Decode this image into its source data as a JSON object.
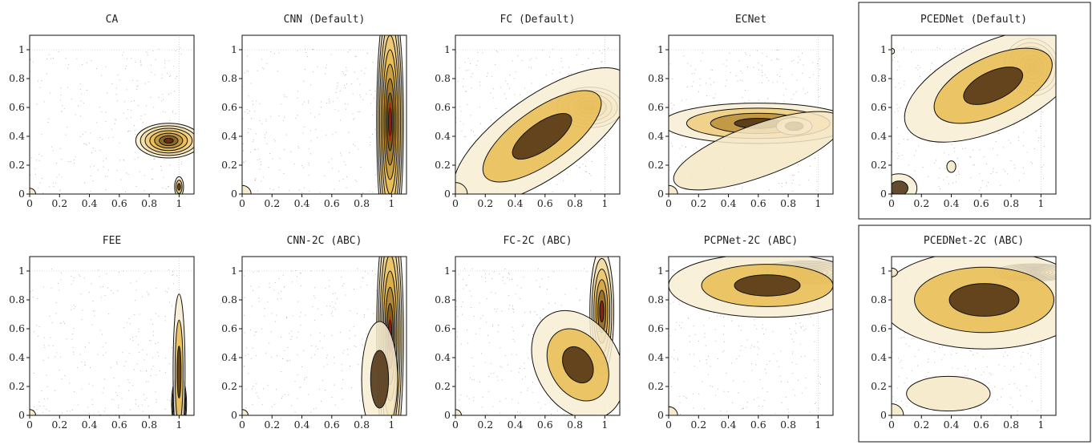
{
  "colors": {
    "frame": "#111111",
    "contour": "#111111",
    "grid": "#bbbbbb",
    "scatter": "#8a5a5a",
    "fill_low": "#f8edd2",
    "fill_mid": "#e8b94a",
    "fill_high": "#3a1e08",
    "peak": "#b01010"
  },
  "chart_data": [
    {
      "type": "contour",
      "title": "CA",
      "xticks": [
        "0",
        "0.2",
        "0.4",
        "0.6",
        "0.8",
        "1"
      ],
      "yticks": [
        "0",
        "0.2",
        "0.4",
        "0.6",
        "0.8",
        "1"
      ],
      "xlim": [
        0,
        1.1
      ],
      "ylim": [
        0,
        1.1
      ],
      "grid": "dotted",
      "highlighted": false,
      "blobs": [
        {
          "cx": 0.93,
          "cy": 0.37,
          "sx": 0.11,
          "sy": 0.06,
          "levels": 7
        },
        {
          "cx": 1.0,
          "cy": 0.05,
          "sx": 0.015,
          "sy": 0.035,
          "levels": 3
        },
        {
          "cx": 0.0,
          "cy": 0.0,
          "sx": 0.02,
          "sy": 0.02,
          "levels": 1
        }
      ]
    },
    {
      "type": "contour",
      "title": "CNN (Default)",
      "xticks": [
        "0",
        "0.2",
        "0.4",
        "0.6",
        "0.8",
        "1"
      ],
      "yticks": [
        "0",
        "0.2",
        "0.4",
        "0.6",
        "0.8",
        "1"
      ],
      "xlim": [
        0,
        1.1
      ],
      "ylim": [
        0,
        1.1
      ],
      "grid": "dotted",
      "highlighted": false,
      "blobs": [
        {
          "cx": 0.99,
          "cy": 0.5,
          "sx": 0.045,
          "sy": 0.45,
          "levels": 9
        },
        {
          "cx": 0.0,
          "cy": 0.0,
          "sx": 0.03,
          "sy": 0.03,
          "levels": 1
        }
      ]
    },
    {
      "type": "contour",
      "title": "FC (Default)",
      "xticks": [
        "0",
        "0.2",
        "0.4",
        "0.6",
        "0.8",
        "1"
      ],
      "yticks": [
        "0",
        "0.2",
        "0.4",
        "0.6",
        "0.8",
        "1"
      ],
      "xlim": [
        0,
        1.1
      ],
      "ylim": [
        0,
        1.1
      ],
      "grid": "dotted",
      "highlighted": false,
      "blobs": [
        {
          "cx": 0.9,
          "cy": 0.6,
          "sx": 0.11,
          "sy": 0.07,
          "levels": 6
        },
        {
          "cx": 0.58,
          "cy": 0.4,
          "sx": 0.35,
          "sy": 0.14,
          "rot": -35,
          "levels": 3
        },
        {
          "cx": 0.0,
          "cy": 0.0,
          "sx": 0.04,
          "sy": 0.04,
          "levels": 1
        }
      ]
    },
    {
      "type": "contour",
      "title": "ECNet",
      "xticks": [
        "0",
        "0.2",
        "0.4",
        "0.6",
        "0.8",
        "1"
      ],
      "yticks": [
        "0",
        "0.2",
        "0.4",
        "0.6",
        "0.8",
        "1"
      ],
      "xlim": [
        0,
        1.1
      ],
      "ylim": [
        0,
        1.1
      ],
      "grid": "dotted",
      "highlighted": false,
      "blobs": [
        {
          "cx": 0.6,
          "cy": 0.49,
          "sx": 0.32,
          "sy": 0.07,
          "levels": 4
        },
        {
          "cx": 0.84,
          "cy": 0.47,
          "sx": 0.06,
          "sy": 0.03,
          "levels": 2
        },
        {
          "cx": 0.6,
          "cy": 0.3,
          "sx": 0.3,
          "sy": 0.09,
          "rot": -20,
          "levels": 1
        },
        {
          "cx": 0.0,
          "cy": 0.0,
          "sx": 0.03,
          "sy": 0.03,
          "levels": 1
        }
      ]
    },
    {
      "type": "contour",
      "title": "PCEDNet (Default)",
      "xticks": [
        "0",
        "0.2",
        "0.4",
        "0.6",
        "0.8",
        "1"
      ],
      "yticks": [
        "0",
        "0.2",
        "0.4",
        "0.6",
        "0.8",
        "1"
      ],
      "xlim": [
        0,
        1.1
      ],
      "ylim": [
        0,
        1.1
      ],
      "grid": "dotted",
      "highlighted": true,
      "blobs": [
        {
          "cx": 0.94,
          "cy": 0.88,
          "sx": 0.09,
          "sy": 0.1,
          "rot": -30,
          "levels": 7
        },
        {
          "cx": 0.68,
          "cy": 0.75,
          "sx": 0.32,
          "sy": 0.15,
          "rot": -25,
          "levels": 3
        },
        {
          "cx": 0.4,
          "cy": 0.19,
          "sx": 0.015,
          "sy": 0.02,
          "levels": 1
        },
        {
          "cx": 0.05,
          "cy": 0.04,
          "sx": 0.06,
          "sy": 0.05,
          "levels": 2
        },
        {
          "cx": 0.0,
          "cy": 0.99,
          "sx": 0.01,
          "sy": 0.01,
          "levels": 1
        }
      ]
    },
    {
      "type": "contour",
      "title": "FEE",
      "xticks": [
        "0",
        "0.2",
        "0.4",
        "0.6",
        "0.8",
        "1"
      ],
      "yticks": [
        "0",
        "0.2",
        "0.4",
        "0.6",
        "0.8",
        "1"
      ],
      "xlim": [
        0,
        1.1
      ],
      "ylim": [
        0,
        1.1
      ],
      "grid": "dotted",
      "highlighted": false,
      "blobs": [
        {
          "cx": 1.0,
          "cy": 0.08,
          "sx": 0.025,
          "sy": 0.1,
          "levels": 9
        },
        {
          "cx": 1.0,
          "cy": 0.3,
          "sx": 0.02,
          "sy": 0.27,
          "levels": 3
        },
        {
          "cx": 0.0,
          "cy": 0.0,
          "sx": 0.02,
          "sy": 0.02,
          "levels": 1
        }
      ]
    },
    {
      "type": "contour",
      "title": "CNN-2C (ABC)",
      "xticks": [
        "0",
        "0.2",
        "0.4",
        "0.6",
        "0.8",
        "1"
      ],
      "yticks": [
        "0",
        "0.2",
        "0.4",
        "0.6",
        "0.8",
        "1"
      ],
      "xlim": [
        0,
        1.1
      ],
      "ylim": [
        0,
        1.1
      ],
      "grid": "dotted",
      "highlighted": false,
      "blobs": [
        {
          "cx": 0.99,
          "cy": 0.55,
          "sx": 0.045,
          "sy": 0.45,
          "levels": 8
        },
        {
          "cx": 0.92,
          "cy": 0.25,
          "sx": 0.06,
          "sy": 0.2,
          "levels": 2
        },
        {
          "cx": 0.0,
          "cy": 0.0,
          "sx": 0.02,
          "sy": 0.02,
          "levels": 1
        }
      ]
    },
    {
      "type": "contour",
      "title": "FC-2C (ABC)",
      "xticks": [
        "0",
        "0.2",
        "0.4",
        "0.6",
        "0.8",
        "1"
      ],
      "yticks": [
        "0",
        "0.2",
        "0.4",
        "0.6",
        "0.8",
        "1"
      ],
      "xlim": [
        0,
        1.1
      ],
      "ylim": [
        0,
        1.1
      ],
      "grid": "dotted",
      "highlighted": false,
      "blobs": [
        {
          "cx": 0.98,
          "cy": 0.72,
          "sx": 0.04,
          "sy": 0.22,
          "levels": 6
        },
        {
          "cx": 0.82,
          "cy": 0.35,
          "sx": 0.14,
          "sy": 0.2,
          "rot": -30,
          "levels": 3
        },
        {
          "cx": 0.0,
          "cy": 0.0,
          "sx": 0.02,
          "sy": 0.02,
          "levels": 1
        }
      ]
    },
    {
      "type": "contour",
      "title": "PCPNet-2C (ABC)",
      "xticks": [
        "0",
        "0.2",
        "0.4",
        "0.6",
        "0.8",
        "1"
      ],
      "yticks": [
        "0",
        "0.2",
        "0.4",
        "0.6",
        "0.8",
        "1"
      ],
      "xlim": [
        0,
        1.1
      ],
      "ylim": [
        0,
        1.1
      ],
      "grid": "dotted",
      "highlighted": false,
      "blobs": [
        {
          "cx": 0.93,
          "cy": 0.99,
          "sx": 0.17,
          "sy": 0.04,
          "levels": 10
        },
        {
          "cx": 0.66,
          "cy": 0.9,
          "sx": 0.33,
          "sy": 0.11,
          "levels": 3
        },
        {
          "cx": 0.0,
          "cy": 0.0,
          "sx": 0.03,
          "sy": 0.03,
          "levels": 1
        }
      ]
    },
    {
      "type": "contour",
      "title": "PCEDNet-2C (ABC)",
      "xticks": [
        "0",
        "0.2",
        "0.4",
        "0.6",
        "0.8",
        "1"
      ],
      "yticks": [
        "0",
        "0.2",
        "0.4",
        "0.6",
        "0.8",
        "1"
      ],
      "xlim": [
        0,
        1.1
      ],
      "ylim": [
        0,
        1.1
      ],
      "grid": "dotted",
      "highlighted": true,
      "blobs": [
        {
          "cx": 0.95,
          "cy": 0.99,
          "sx": 0.13,
          "sy": 0.03,
          "levels": 10
        },
        {
          "cx": 0.62,
          "cy": 0.8,
          "sx": 0.35,
          "sy": 0.17,
          "levels": 3
        },
        {
          "cx": 0.38,
          "cy": 0.15,
          "sx": 0.14,
          "sy": 0.06,
          "levels": 1
        },
        {
          "cx": 0.0,
          "cy": 0.99,
          "sx": 0.02,
          "sy": 0.015,
          "levels": 1
        },
        {
          "cx": 0.0,
          "cy": 0.0,
          "sx": 0.04,
          "sy": 0.04,
          "levels": 1
        }
      ]
    }
  ]
}
